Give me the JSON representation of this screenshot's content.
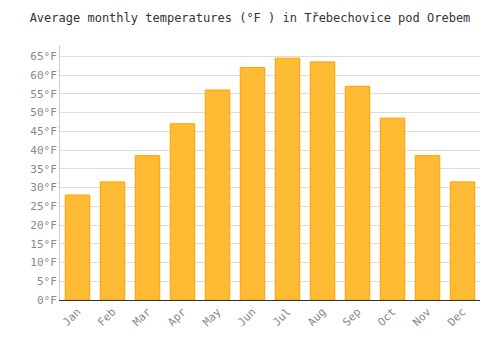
{
  "chart_data": {
    "type": "bar",
    "title": "Average monthly temperatures (°F ) in Třebechovice pod Orebem",
    "categories": [
      "Jan",
      "Feb",
      "Mar",
      "Apr",
      "May",
      "Jun",
      "Jul",
      "Aug",
      "Sep",
      "Oct",
      "Nov",
      "Dec"
    ],
    "values": [
      28,
      31.5,
      38.5,
      47,
      56,
      62,
      64.5,
      63.5,
      57,
      48.5,
      38.5,
      31.5
    ],
    "color": "#FFBB33",
    "ylim": [
      0,
      68
    ],
    "yticks": [
      {
        "value": 0,
        "label": "0°F"
      },
      {
        "value": 5,
        "label": "5°F"
      },
      {
        "value": 10,
        "label": "10°F"
      },
      {
        "value": 15,
        "label": "15°F"
      },
      {
        "value": 20,
        "label": "20°F"
      },
      {
        "value": 25,
        "label": "25°F"
      },
      {
        "value": 30,
        "label": "30°F"
      },
      {
        "value": 35,
        "label": "35°F"
      },
      {
        "value": 40,
        "label": "40°F"
      },
      {
        "value": 45,
        "label": "45°F"
      },
      {
        "value": 50,
        "label": "50°F"
      },
      {
        "value": 55,
        "label": "55°F"
      },
      {
        "value": 60,
        "label": "60°F"
      },
      {
        "value": 65,
        "label": "65°F"
      }
    ],
    "grid": true
  }
}
